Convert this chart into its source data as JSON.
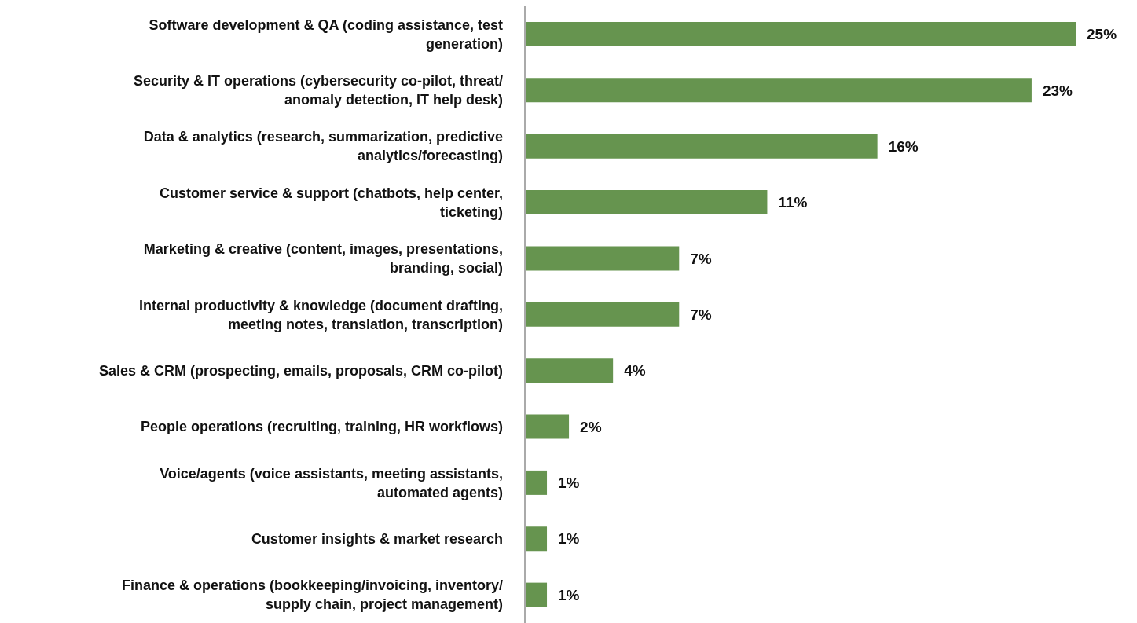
{
  "chart_data": {
    "type": "bar",
    "orientation": "horizontal",
    "categories": [
      "Software development & QA (coding assistance, test generation)",
      "Security & IT operations (cybersecurity co-pilot, threat/ anomaly detection, IT help desk)",
      "Data & analytics (research, summarization, predictive analytics/forecasting)",
      "Customer service & support (chatbots, help center, ticketing)",
      "Marketing & creative (content, images, presentations, branding, social)",
      "Internal productivity & knowledge (document drafting, meeting notes, translation, transcription)",
      "Sales & CRM (prospecting, emails, proposals, CRM co-pilot)",
      "People operations (recruiting, training, HR workflows)",
      "Voice/agents (voice assistants, meeting assistants, automated agents)",
      "Customer insights & market research",
      "Finance & operations (bookkeeping/invoicing, inventory/ supply chain, project management)"
    ],
    "values": [
      25,
      23,
      16,
      11,
      7,
      7,
      4,
      2,
      1,
      1,
      1
    ],
    "value_labels": [
      "25%",
      "23%",
      "16%",
      "11%",
      "7%",
      "7%",
      "4%",
      "2%",
      "1%",
      "1%",
      "1%"
    ],
    "color": "#66944f"
  }
}
